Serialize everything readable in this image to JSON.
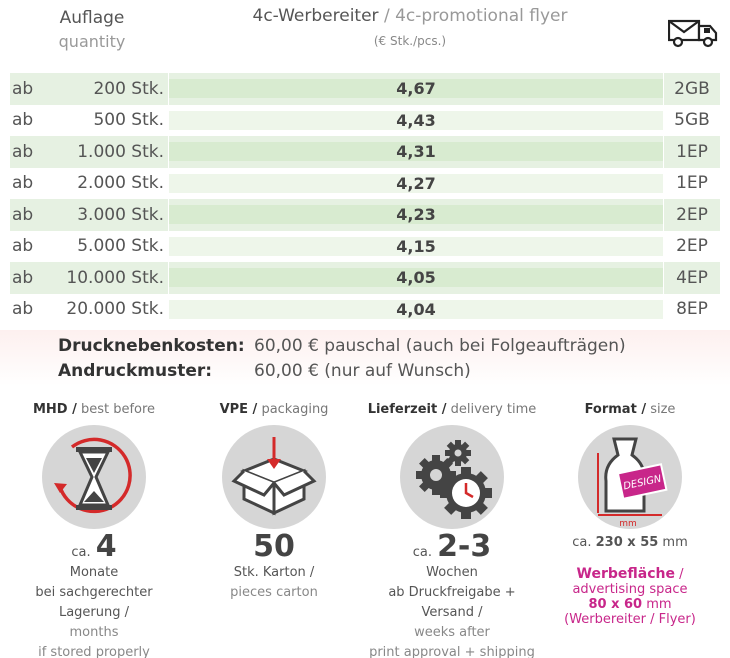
{
  "header": {
    "qty_de": "Auflage",
    "qty_en": "quantity",
    "title_de": "4c-Werbereiter",
    "title_sep": " / ",
    "title_en": "4c-promotional flyer",
    "unit": "(€ Stk./pcs.)",
    "shipping_icon": "truck-envelope-icon"
  },
  "rows": [
    {
      "ab": "ab",
      "qty": "200 Stk.",
      "price": "4,67",
      "pack": "2GB"
    },
    {
      "ab": "ab",
      "qty": "500 Stk.",
      "price": "4,43",
      "pack": "5GB"
    },
    {
      "ab": "ab",
      "qty": "1.000 Stk.",
      "price": "4,31",
      "pack": "1EP"
    },
    {
      "ab": "ab",
      "qty": "2.000 Stk.",
      "price": "4,27",
      "pack": "1EP"
    },
    {
      "ab": "ab",
      "qty": "3.000 Stk.",
      "price": "4,23",
      "pack": "2EP"
    },
    {
      "ab": "ab",
      "qty": "5.000 Stk.",
      "price": "4,15",
      "pack": "2EP"
    },
    {
      "ab": "ab",
      "qty": "10.000 Stk.",
      "price": "4,05",
      "pack": "4EP"
    },
    {
      "ab": "ab",
      "qty": "20.000 Stk.",
      "price": "4,04",
      "pack": "8EP"
    }
  ],
  "costs": {
    "druck_label": "Drucknebenkosten:",
    "druck_value": "60,00 € pauschal (auch bei Folgeaufträgen)",
    "andruck_label": "Andruckmuster:",
    "andruck_value": "60,00 € (nur auf Wunsch)"
  },
  "info": {
    "mhd": {
      "title_de": "MHD /",
      "title_en": " best before",
      "icon": "hourglass-icon",
      "ca": "ca.",
      "value": "4",
      "line1": "Monate",
      "line2": "bei sachgerechter Lagerung /",
      "line3": "months",
      "line4": "if stored properly"
    },
    "vpe": {
      "title_de": "VPE /",
      "title_en": " packaging",
      "icon": "box-icon",
      "value": "50",
      "line1": "Stk. Karton /",
      "line2": "pieces carton"
    },
    "lieferzeit": {
      "title_de": "Lieferzeit /",
      "title_en": " delivery time",
      "icon": "gears-clock-icon",
      "ca": "ca.",
      "value": "2-3",
      "line1": "Wochen",
      "line2": "ab Druckfreigabe + Versand /",
      "line3": "weeks after",
      "line4": "print approval + shipping"
    },
    "format": {
      "title_de": "Format /",
      "title_en": " size",
      "icon": "bottle-design-icon",
      "icon_text": "DESIGN",
      "icon_unit": "mm",
      "size_ca": "ca. ",
      "size": "230 x 55",
      "size_unit": " mm",
      "werbe_de": "Werbefläche",
      "werbe_sep": " /",
      "werbe_en": "advertising space",
      "werbe_size": "80 x 60",
      "werbe_unit": " mm",
      "werbe_note": "(Werbereiter / Flyer)"
    }
  },
  "colors": {
    "row_green": "#e6f1e2",
    "accent_pink": "#c8268a",
    "accent_red": "#d42a2a"
  }
}
